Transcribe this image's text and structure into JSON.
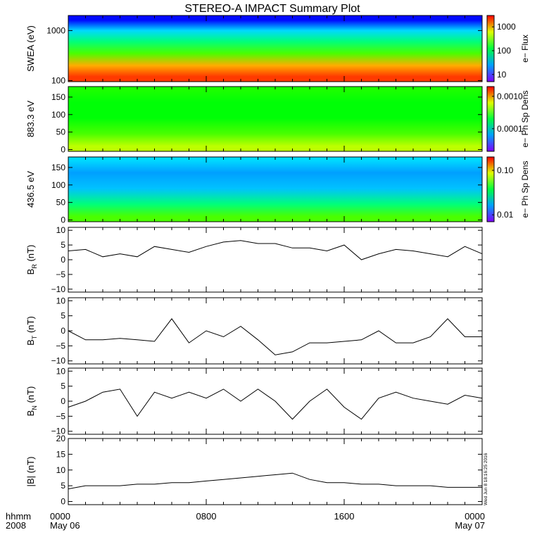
{
  "title": "STEREO-A IMPACT Summary Plot",
  "time_axis": {
    "row_label_1": "hhmm",
    "row_label_2": "2008",
    "ticks": [
      {
        "hhmm": "0000",
        "date": "May 06",
        "hour": 0
      },
      {
        "hhmm": "0800",
        "date": "",
        "hour": 8
      },
      {
        "hhmm": "1600",
        "date": "",
        "hour": 16
      },
      {
        "hhmm": "0000",
        "date": "May 07",
        "hour": 24
      }
    ],
    "range_hours": [
      0,
      24
    ]
  },
  "timestamp": "Wed Jun 8 18:16:25 2016",
  "chart_data": [
    {
      "type": "heatmap",
      "ylabel": "SWEA (eV)",
      "yscale": "log",
      "ylim": [
        95,
        2000
      ],
      "yticks": [
        {
          "value": 100,
          "label": "100"
        },
        {
          "value": 1000,
          "label": "1000"
        }
      ],
      "colorbar": {
        "label": "e− Flux",
        "scale": "log",
        "range": [
          5,
          3000
        ],
        "ticks": [
          {
            "value": 10,
            "label": "10"
          },
          {
            "value": 100,
            "label": "100"
          },
          {
            "value": 1000,
            "label": "1000"
          }
        ]
      },
      "x_hours": [
        0,
        24
      ],
      "y_energy_bands_eV": [
        120,
        200,
        350,
        600,
        1000,
        1600
      ],
      "levels_normalized": [
        0.95,
        0.85,
        0.62,
        0.45,
        0.3,
        0.12
      ]
    },
    {
      "type": "heatmap",
      "ylabel": "883.3 eV",
      "ylim": [
        -5,
        180
      ],
      "yticks": [
        {
          "value": 0,
          "label": "0"
        },
        {
          "value": 50,
          "label": "50"
        },
        {
          "value": 100,
          "label": "100"
        },
        {
          "value": 150,
          "label": "150"
        }
      ],
      "colorbar": {
        "label": "e− Ph Sp Dens",
        "scale": "log",
        "range": [
          2e-05,
          0.002
        ],
        "ticks": [
          {
            "value": 0.0001,
            "label": "0.0001"
          },
          {
            "value": 0.001,
            "label": "0.0010"
          }
        ]
      },
      "x_hours": [
        0,
        24
      ],
      "y_pitch_deg": [
        10,
        45,
        90,
        135,
        170
      ],
      "levels_normalized": [
        0.72,
        0.62,
        0.55,
        0.55,
        0.58
      ]
    },
    {
      "type": "heatmap",
      "ylabel": "436.5 eV",
      "ylim": [
        -5,
        180
      ],
      "yticks": [
        {
          "value": 0,
          "label": "0"
        },
        {
          "value": 50,
          "label": "50"
        },
        {
          "value": 100,
          "label": "100"
        },
        {
          "value": 150,
          "label": "150"
        }
      ],
      "colorbar": {
        "label": "e− Ph Sp Dens",
        "scale": "log",
        "range": [
          0.007,
          0.2
        ],
        "ticks": [
          {
            "value": 0.01,
            "label": "0.01"
          },
          {
            "value": 0.1,
            "label": "0.10"
          }
        ]
      },
      "x_hours": [
        0,
        24
      ],
      "y_pitch_deg": [
        10,
        45,
        90,
        135,
        170
      ],
      "levels_normalized": [
        0.62,
        0.45,
        0.28,
        0.25,
        0.3
      ]
    },
    {
      "type": "line",
      "ylabel_main": "B",
      "ylabel_sub": "R",
      "ylabel_unit": "(nT)",
      "ylim": [
        -11,
        11
      ],
      "yticks": [
        {
          "value": -10,
          "label": "−10"
        },
        {
          "value": -5,
          "label": "−5"
        },
        {
          "value": 0,
          "label": "0"
        },
        {
          "value": 5,
          "label": "5"
        },
        {
          "value": 10,
          "label": "10"
        }
      ],
      "x_hours": [
        0,
        1,
        2,
        3,
        4,
        5,
        6,
        7,
        8,
        9,
        10,
        11,
        12,
        13,
        14,
        15,
        16,
        17,
        18,
        19,
        20,
        21,
        22,
        23,
        24
      ],
      "values": [
        3,
        3.5,
        1,
        2,
        1,
        4.5,
        3.5,
        2.5,
        4.5,
        6,
        6.5,
        5.5,
        5.5,
        4,
        4,
        3,
        5,
        0,
        2,
        3.5,
        3,
        2,
        1,
        4.5,
        2
      ]
    },
    {
      "type": "line",
      "ylabel_main": "B",
      "ylabel_sub": "T",
      "ylabel_unit": "(nT)",
      "ylim": [
        -11,
        11
      ],
      "yticks": [
        {
          "value": -10,
          "label": "−10"
        },
        {
          "value": -5,
          "label": "−5"
        },
        {
          "value": 0,
          "label": "0"
        },
        {
          "value": 5,
          "label": "5"
        },
        {
          "value": 10,
          "label": "10"
        }
      ],
      "x_hours": [
        0,
        1,
        2,
        3,
        4,
        5,
        6,
        7,
        8,
        9,
        10,
        11,
        12,
        13,
        14,
        15,
        16,
        17,
        18,
        19,
        20,
        21,
        22,
        23,
        24
      ],
      "values": [
        0,
        -3,
        -3,
        -2.5,
        -3,
        -3.5,
        4,
        -4,
        0,
        -2,
        1.5,
        -3,
        -8,
        -7,
        -4,
        -4,
        -3.5,
        -3,
        0,
        -4,
        -4,
        -2,
        4,
        -2,
        -2
      ]
    },
    {
      "type": "line",
      "ylabel_main": "B",
      "ylabel_sub": "N",
      "ylabel_unit": "(nT)",
      "ylim": [
        -11,
        11
      ],
      "yticks": [
        {
          "value": -10,
          "label": "−10"
        },
        {
          "value": -5,
          "label": "−5"
        },
        {
          "value": 0,
          "label": "0"
        },
        {
          "value": 5,
          "label": "5"
        },
        {
          "value": 10,
          "label": "10"
        }
      ],
      "x_hours": [
        0,
        1,
        2,
        3,
        4,
        5,
        6,
        7,
        8,
        9,
        10,
        11,
        12,
        13,
        14,
        15,
        16,
        17,
        18,
        19,
        20,
        21,
        22,
        23,
        24
      ],
      "values": [
        -2,
        0,
        3,
        4,
        -5,
        3,
        1,
        3,
        1,
        4,
        0,
        4,
        0,
        -6,
        0,
        4,
        -2,
        -6,
        1,
        3,
        1,
        0,
        -1,
        2,
        1
      ]
    },
    {
      "type": "line",
      "ylabel_main": "|B|",
      "ylabel_sub": "",
      "ylabel_unit": "(nT)",
      "ylim": [
        -1,
        20
      ],
      "yticks": [
        {
          "value": 0,
          "label": "0"
        },
        {
          "value": 5,
          "label": "5"
        },
        {
          "value": 10,
          "label": "10"
        },
        {
          "value": 15,
          "label": "15"
        },
        {
          "value": 20,
          "label": "20"
        }
      ],
      "x_hours": [
        0,
        1,
        2,
        3,
        4,
        5,
        6,
        7,
        8,
        9,
        10,
        11,
        12,
        13,
        14,
        15,
        16,
        17,
        18,
        19,
        20,
        21,
        22,
        23,
        24
      ],
      "values": [
        4,
        5,
        5,
        5,
        5.5,
        5.5,
        6,
        6,
        6.5,
        7,
        7.5,
        8,
        8.5,
        9,
        7,
        6,
        6,
        5.5,
        5.5,
        5,
        5,
        5,
        4.5,
        4.5,
        4.5
      ]
    }
  ]
}
